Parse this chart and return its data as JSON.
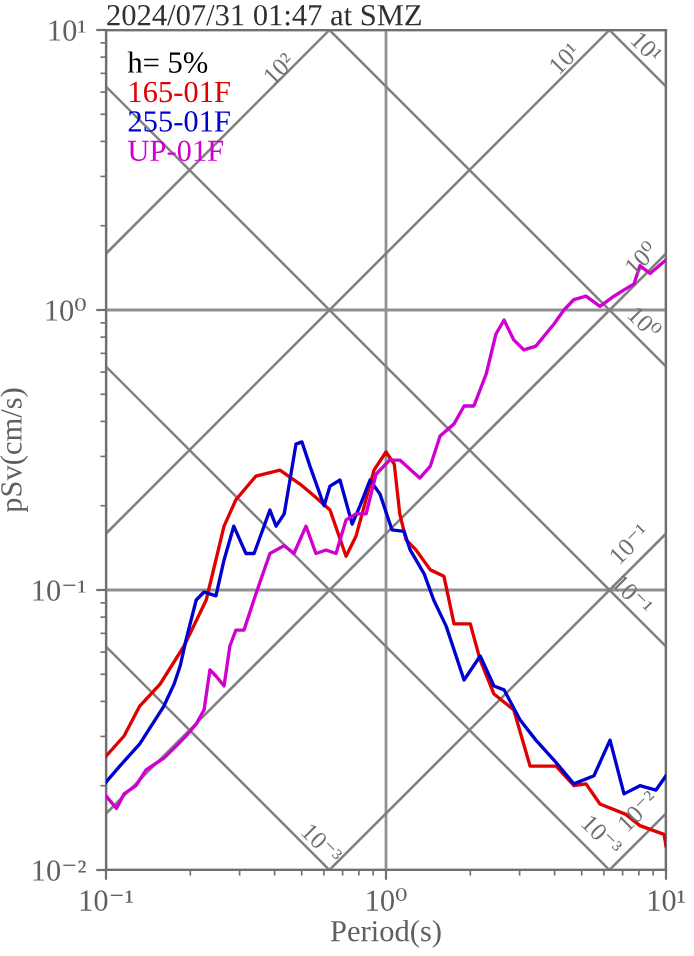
{
  "chart_data": {
    "type": "line",
    "title": "2024/07/31 01:47 at SMZ",
    "xlabel": "Period(s)",
    "ylabel": "pSv(cm/s)",
    "legend_title": "h= 5%",
    "legend": "top left",
    "grid": true,
    "log": "xy",
    "xlim": [
      0.1,
      10
    ],
    "ylim": [
      0.01,
      10
    ],
    "xticks": [
      {
        "value": 0.1,
        "label": "10⁻¹"
      },
      {
        "value": 1,
        "label": "10⁰"
      },
      {
        "value": 10,
        "label": "10¹"
      }
    ],
    "yticks": [
      {
        "value": 0.01,
        "label": "10⁻²"
      },
      {
        "value": 0.1,
        "label": "10⁻¹"
      },
      {
        "value": 1,
        "label": "10⁰"
      },
      {
        "value": 10,
        "label": "10¹"
      }
    ],
    "series": [
      {
        "color": "#808080",
        "x": [
          0.1,
          0.628
        ],
        "values": [
          1.59,
          10
        ]
      },
      {
        "color": "#808080",
        "x": [
          0.1,
          6.28
        ],
        "values": [
          0.159,
          10
        ]
      },
      {
        "color": "#808080",
        "x": [
          0.1,
          10
        ],
        "values": [
          0.0159,
          1.59
        ]
      },
      {
        "color": "#808080",
        "x": [
          0.628,
          10
        ],
        "values": [
          0.01,
          0.159
        ]
      },
      {
        "color": "#808080",
        "x": [
          6.28,
          10
        ],
        "values": [
          0.01,
          0.0159
        ]
      },
      {
        "color": "#808080",
        "x": [
          0.1,
          10
        ],
        "values": [
          6.28,
          0.0628
        ]
      },
      {
        "color": "#808080",
        "x": [
          0.628,
          10
        ],
        "values": [
          10,
          0.628
        ]
      },
      {
        "color": "#808080",
        "x": [
          6.28,
          10
        ],
        "values": [
          10,
          6.28
        ]
      },
      {
        "color": "#808080",
        "x": [
          0.1,
          6.28
        ],
        "values": [
          0.628,
          0.01
        ]
      },
      {
        "color": "#808080",
        "x": [
          0.1,
          0.628
        ],
        "values": [
          0.0628,
          0.01
        ]
      },
      {
        "name": "165-01F",
        "color": "#e00000",
        "x": [
          0.1,
          0.116,
          0.132,
          0.156,
          0.19,
          0.228,
          0.264,
          0.291,
          0.343,
          0.418,
          0.493,
          0.553,
          0.631,
          0.72,
          0.782,
          0.906,
          1.0,
          1.07,
          1.12,
          1.18,
          1.28,
          1.44,
          1.61,
          1.75,
          2.0,
          2.17,
          2.43,
          2.86,
          3.27,
          4.05,
          4.69,
          5.18,
          5.81,
          7.19,
          8.07,
          9.84,
          10
        ],
        "values": [
          0.0255,
          0.0301,
          0.0385,
          0.0461,
          0.0631,
          0.0921,
          0.169,
          0.21,
          0.255,
          0.268,
          0.239,
          0.217,
          0.193,
          0.132,
          0.156,
          0.268,
          0.311,
          0.282,
          0.187,
          0.151,
          0.139,
          0.118,
          0.112,
          0.0757,
          0.0757,
          0.0562,
          0.0425,
          0.0373,
          0.0235,
          0.0235,
          0.02,
          0.0203,
          0.0172,
          0.0158,
          0.0144,
          0.0134,
          0.0122
        ]
      },
      {
        "name": "255-01F",
        "color": "#0000d0",
        "x": [
          0.1,
          0.112,
          0.132,
          0.161,
          0.175,
          0.184,
          0.193,
          0.21,
          0.224,
          0.247,
          0.264,
          0.286,
          0.316,
          0.338,
          0.385,
          0.405,
          0.433,
          0.454,
          0.477,
          0.501,
          0.535,
          0.601,
          0.631,
          0.685,
          0.757,
          0.808,
          0.877,
          0.952,
          1.05,
          1.16,
          1.22,
          1.37,
          1.48,
          1.64,
          1.9,
          2.17,
          2.43,
          2.64,
          3.01,
          3.43,
          3.98,
          4.69,
          5.53,
          6.31,
          7.08,
          8.07,
          9.21,
          10
        ],
        "values": [
          0.0206,
          0.0235,
          0.0282,
          0.0385,
          0.0461,
          0.0535,
          0.0662,
          0.0921,
          0.0984,
          0.0953,
          0.128,
          0.169,
          0.135,
          0.135,
          0.193,
          0.169,
          0.187,
          0.247,
          0.332,
          0.338,
          0.277,
          0.2,
          0.235,
          0.247,
          0.172,
          0.2,
          0.247,
          0.22,
          0.164,
          0.162,
          0.139,
          0.114,
          0.0921,
          0.0743,
          0.0477,
          0.0581,
          0.0454,
          0.044,
          0.0344,
          0.0291,
          0.0247,
          0.0203,
          0.0217,
          0.0291,
          0.0187,
          0.02,
          0.0193,
          0.0217
        ]
      },
      {
        "name": "UP-01F",
        "color": "#d000d0",
        "x": [
          0.1,
          0.109,
          0.116,
          0.128,
          0.139,
          0.161,
          0.178,
          0.193,
          0.21,
          0.224,
          0.235,
          0.247,
          0.264,
          0.277,
          0.291,
          0.311,
          0.343,
          0.385,
          0.433,
          0.469,
          0.518,
          0.562,
          0.611,
          0.663,
          0.72,
          0.782,
          0.849,
          0.921,
          1.03,
          1.12,
          1.32,
          1.44,
          1.56,
          1.75,
          1.9,
          2.06,
          2.28,
          2.47,
          2.64,
          2.86,
          3.11,
          3.43,
          3.98,
          4.32,
          4.69,
          5.18,
          5.81,
          6.52,
          7.08,
          7.69,
          8.07,
          8.77,
          10
        ],
        "values": [
          0.0184,
          0.0166,
          0.0187,
          0.02,
          0.0228,
          0.0251,
          0.0277,
          0.0301,
          0.0332,
          0.0373,
          0.0518,
          0.0493,
          0.0454,
          0.0631,
          0.0719,
          0.0719,
          0.0968,
          0.135,
          0.144,
          0.135,
          0.169,
          0.135,
          0.139,
          0.135,
          0.178,
          0.187,
          0.187,
          0.259,
          0.291,
          0.291,
          0.251,
          0.277,
          0.355,
          0.392,
          0.454,
          0.454,
          0.591,
          0.821,
          0.921,
          0.782,
          0.72,
          0.743,
          0.891,
          1.0,
          1.09,
          1.12,
          1.03,
          1.12,
          1.18,
          1.24,
          1.44,
          1.35,
          1.51
        ]
      }
    ],
    "annotations": [
      "10²",
      "10¹",
      "10¹",
      "10⁰",
      "10⁰",
      "10⁻¹",
      "10⁻¹",
      "10⁻³",
      "10⁻³",
      "10⁻²"
    ]
  }
}
